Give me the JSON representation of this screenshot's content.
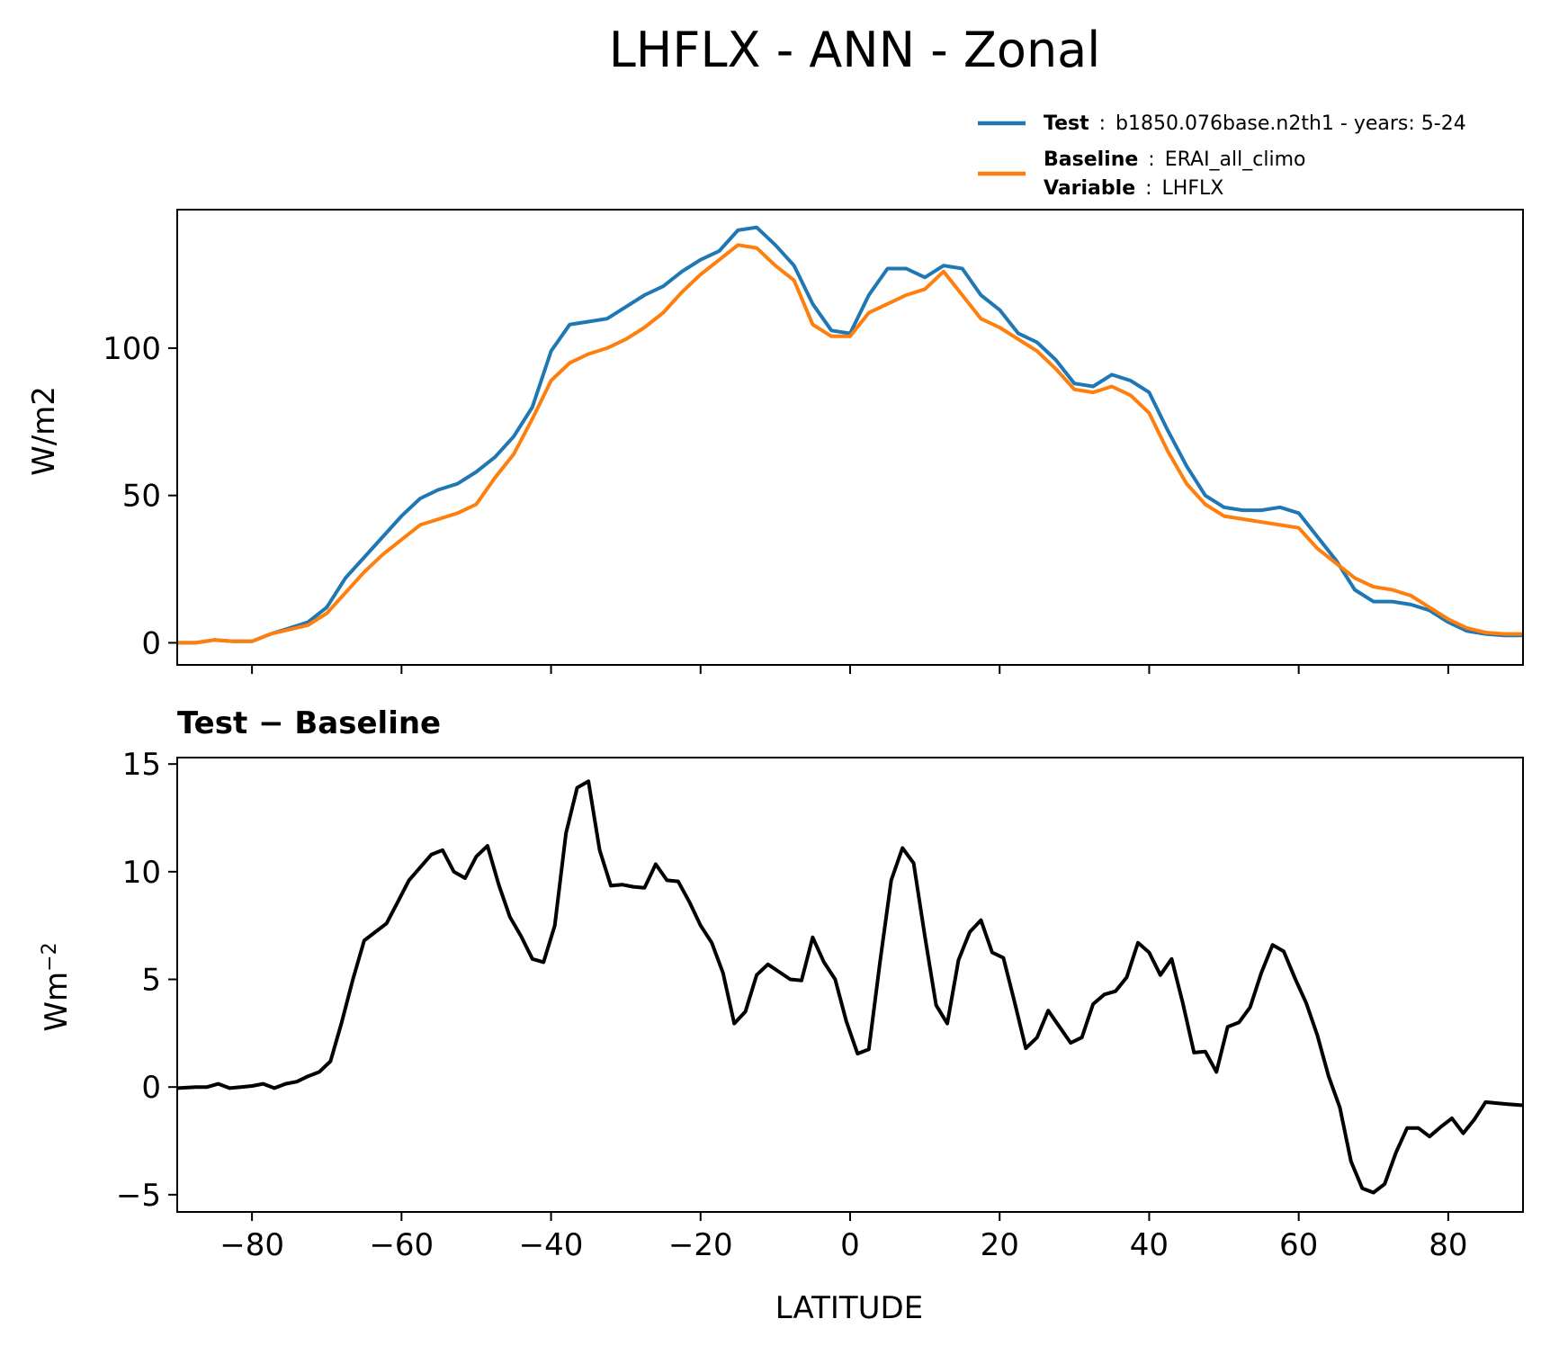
{
  "title": "LHFLX - ANN - Zonal",
  "legend": {
    "test_key": "Test",
    "test_value": "b1850.076base.n2th1 - years: 5-24",
    "baseline_key": "Baseline",
    "baseline_value": "ERAI_all_climo",
    "variable_key": "Variable",
    "variable_value": "LHFLX",
    "separator": ":"
  },
  "colors": {
    "test": "#1f77b4",
    "baseline": "#ff7f0e",
    "diff": "#000000"
  },
  "top_panel": {
    "ylabel": "W/m2"
  },
  "bottom_panel": {
    "title": "Test − Baseline",
    "ylabel_base": "Wm",
    "ylabel_exp": "−2",
    "xlabel": "LATITUDE"
  },
  "chart_data": [
    {
      "type": "line",
      "xlim": [
        -90,
        90
      ],
      "ylim": [
        -7.5,
        147
      ],
      "yticks": [
        0,
        50,
        100
      ],
      "xticks": [
        -80,
        -60,
        -40,
        -20,
        0,
        20,
        40,
        60,
        80
      ],
      "xtick_labels_visible": false,
      "x": [
        -90,
        -87.5,
        -85,
        -82.5,
        -80,
        -77.5,
        -75,
        -72.5,
        -70,
        -67.5,
        -65,
        -62.5,
        -60,
        -57.5,
        -55,
        -52.5,
        -50,
        -47.5,
        -45,
        -42.5,
        -40,
        -37.5,
        -35,
        -32.5,
        -30,
        -27.5,
        -25,
        -22.5,
        -20,
        -17.5,
        -15,
        -12.5,
        -10,
        -7.5,
        -5,
        -2.5,
        0,
        2.5,
        5,
        7.5,
        10,
        12.5,
        15,
        17.5,
        20,
        22.5,
        25,
        27.5,
        30,
        32.5,
        35,
        37.5,
        40,
        42.5,
        45,
        47.5,
        50,
        52.5,
        55,
        57.5,
        60,
        62.5,
        65,
        67.5,
        70,
        72.5,
        75,
        77.5,
        80,
        82.5,
        85,
        87.5,
        90
      ],
      "series": [
        {
          "name": "Test",
          "values": [
            0,
            0,
            1,
            0.5,
            0.5,
            3,
            5,
            7,
            12,
            22,
            29,
            36,
            43,
            49,
            52,
            54,
            58,
            63,
            70,
            80,
            99,
            108,
            109,
            110,
            114,
            118,
            121,
            126,
            130,
            133,
            140,
            141,
            135,
            128,
            115,
            106,
            105,
            118,
            127,
            127,
            124,
            128,
            127,
            118,
            113,
            105,
            102,
            96,
            88,
            87,
            91,
            89,
            85,
            72,
            60,
            50,
            46,
            45,
            45,
            46,
            44,
            36,
            28,
            18,
            14,
            14,
            13,
            11,
            7,
            4,
            3,
            2.5,
            2.5
          ]
        },
        {
          "name": "Baseline",
          "values": [
            0,
            0,
            1,
            0.5,
            0.5,
            3,
            4.5,
            6,
            10,
            17,
            24,
            30,
            35,
            40,
            42,
            44,
            47,
            56,
            64,
            76,
            89,
            95,
            98,
            100,
            103,
            107,
            112,
            119,
            125,
            130,
            135,
            134,
            128,
            123,
            108,
            104,
            104,
            112,
            115,
            118,
            120,
            126,
            118,
            110,
            107,
            103,
            99,
            93,
            86,
            85,
            87,
            84,
            78,
            65,
            54,
            47,
            43,
            42,
            41,
            40,
            39,
            32,
            27,
            22,
            19,
            18,
            16,
            12,
            8,
            5,
            3.5,
            3,
            3
          ]
        }
      ]
    },
    {
      "type": "line",
      "title": "Test − Baseline",
      "xlabel": "LATITUDE",
      "xlim": [
        -90,
        90
      ],
      "ylim": [
        -5.8,
        15.3
      ],
      "yticks": [
        -5,
        0,
        5,
        10,
        15
      ],
      "ytick_labels": [
        "−5",
        "0",
        "5",
        "10",
        "15"
      ],
      "xticks": [
        -80,
        -60,
        -40,
        -20,
        0,
        20,
        40,
        60,
        80
      ],
      "xtick_labels": [
        "−80",
        "−60",
        "−40",
        "−20",
        "0",
        "20",
        "40",
        "60",
        "80"
      ],
      "x": [
        -90,
        -87.5,
        -86,
        -84.5,
        -83,
        -81.5,
        -80,
        -78.5,
        -77,
        -75.5,
        -74,
        -72.5,
        -71,
        -69.5,
        -68,
        -66.5,
        -65,
        -63.5,
        -62,
        -60.5,
        -59,
        -57.5,
        -56,
        -54.5,
        -53,
        -51.5,
        -50,
        -48.5,
        -47,
        -45.5,
        -44,
        -42.5,
        -41,
        -39.5,
        -38,
        -36.5,
        -35,
        -33.5,
        -32,
        -30.5,
        -29,
        -27.5,
        -26,
        -24.5,
        -23,
        -21.5,
        -20,
        -18.5,
        -17,
        -15.5,
        -14,
        -12.5,
        -11,
        -9.5,
        -8,
        -6.5,
        -5,
        -3.5,
        -2,
        -0.5,
        1,
        2.5,
        4,
        5.5,
        7,
        8.5,
        10,
        11.5,
        13,
        14.5,
        16,
        17.5,
        19,
        20.5,
        22,
        23.5,
        25,
        26.5,
        28,
        29.5,
        31,
        32.5,
        34,
        35.5,
        37,
        38.5,
        40,
        41.5,
        43,
        44.5,
        46,
        47.5,
        49,
        50.5,
        52,
        53.5,
        55,
        56.5,
        58,
        59.5,
        61,
        62.5,
        64,
        65.5,
        67,
        68.5,
        70,
        71.5,
        73,
        74.5,
        76,
        77.5,
        79,
        80.5,
        82,
        83.5,
        85,
        86.5,
        88,
        90
      ],
      "series": [
        {
          "values": [
            -0.05,
            0,
            0,
            0.15,
            -0.05,
            0,
            0.05,
            0.15,
            -0.05,
            0.15,
            0.25,
            0.5,
            0.7,
            1.2,
            3,
            5,
            6.8,
            7.2,
            7.6,
            8.6,
            9.6,
            10.2,
            10.8,
            11,
            10,
            9.7,
            10.7,
            11.2,
            9.4,
            7.9,
            7,
            5.95,
            5.8,
            7.5,
            11.8,
            13.9,
            14.2,
            11,
            9.35,
            9.4,
            9.3,
            9.25,
            10.35,
            9.6,
            9.55,
            8.6,
            7.5,
            6.7,
            5.3,
            2.95,
            3.5,
            5.2,
            5.7,
            5.35,
            5,
            4.95,
            6.95,
            5.8,
            5,
            3.05,
            1.55,
            1.75,
            5.8,
            9.6,
            11.1,
            10.4,
            7,
            3.8,
            2.95,
            5.9,
            7.2,
            7.75,
            6.25,
            6,
            3.95,
            1.8,
            2.3,
            3.55,
            2.8,
            2.05,
            2.3,
            3.85,
            4.3,
            4.45,
            5.1,
            6.7,
            6.25,
            5.2,
            5.95,
            3.9,
            1.6,
            1.65,
            0.7,
            2.8,
            3,
            3.7,
            5.3,
            6.6,
            6.3,
            5.05,
            3.9,
            2.4,
            0.5,
            -0.95,
            -3.45,
            -4.7,
            -4.9,
            -4.5,
            -3.05,
            -1.9,
            -1.9,
            -2.3,
            -1.85,
            -1.45,
            -2.15,
            -1.5,
            -0.7,
            -0.75,
            -0.8,
            -0.85
          ]
        }
      ]
    }
  ]
}
